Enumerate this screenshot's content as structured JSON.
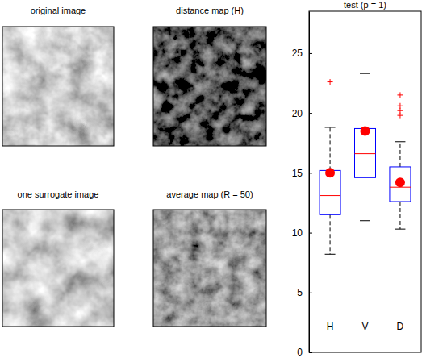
{
  "panels": [
    {
      "title": "original image"
    },
    {
      "title": "distance map (H)"
    },
    {
      "title": "one surrogate image"
    },
    {
      "title": "average map (R = 50)"
    }
  ],
  "chart_data": {
    "type": "box",
    "title": "test (p = 1)",
    "categories": [
      "H",
      "V",
      "D"
    ],
    "ylim": [
      0,
      28.5
    ],
    "yticks": [
      0,
      5,
      10,
      15,
      20,
      25
    ],
    "color": "#0000ff",
    "boxes": [
      {
        "low": 8.2,
        "q1": 11.5,
        "median": 13.1,
        "q3": 15.2,
        "high": 18.8,
        "outliers": [
          22.6
        ]
      },
      {
        "low": 11.0,
        "q1": 14.6,
        "median": 16.6,
        "q3": 18.7,
        "high": 23.3,
        "outliers": []
      },
      {
        "low": 10.3,
        "q1": 12.6,
        "median": 13.8,
        "q3": 15.5,
        "high": 17.6,
        "outliers": [
          19.8,
          20.2,
          20.6,
          21.5
        ]
      }
    ],
    "values": [
      15.0,
      18.5,
      14.2
    ],
    "marker": "circle",
    "point_color": "#ff0000"
  }
}
